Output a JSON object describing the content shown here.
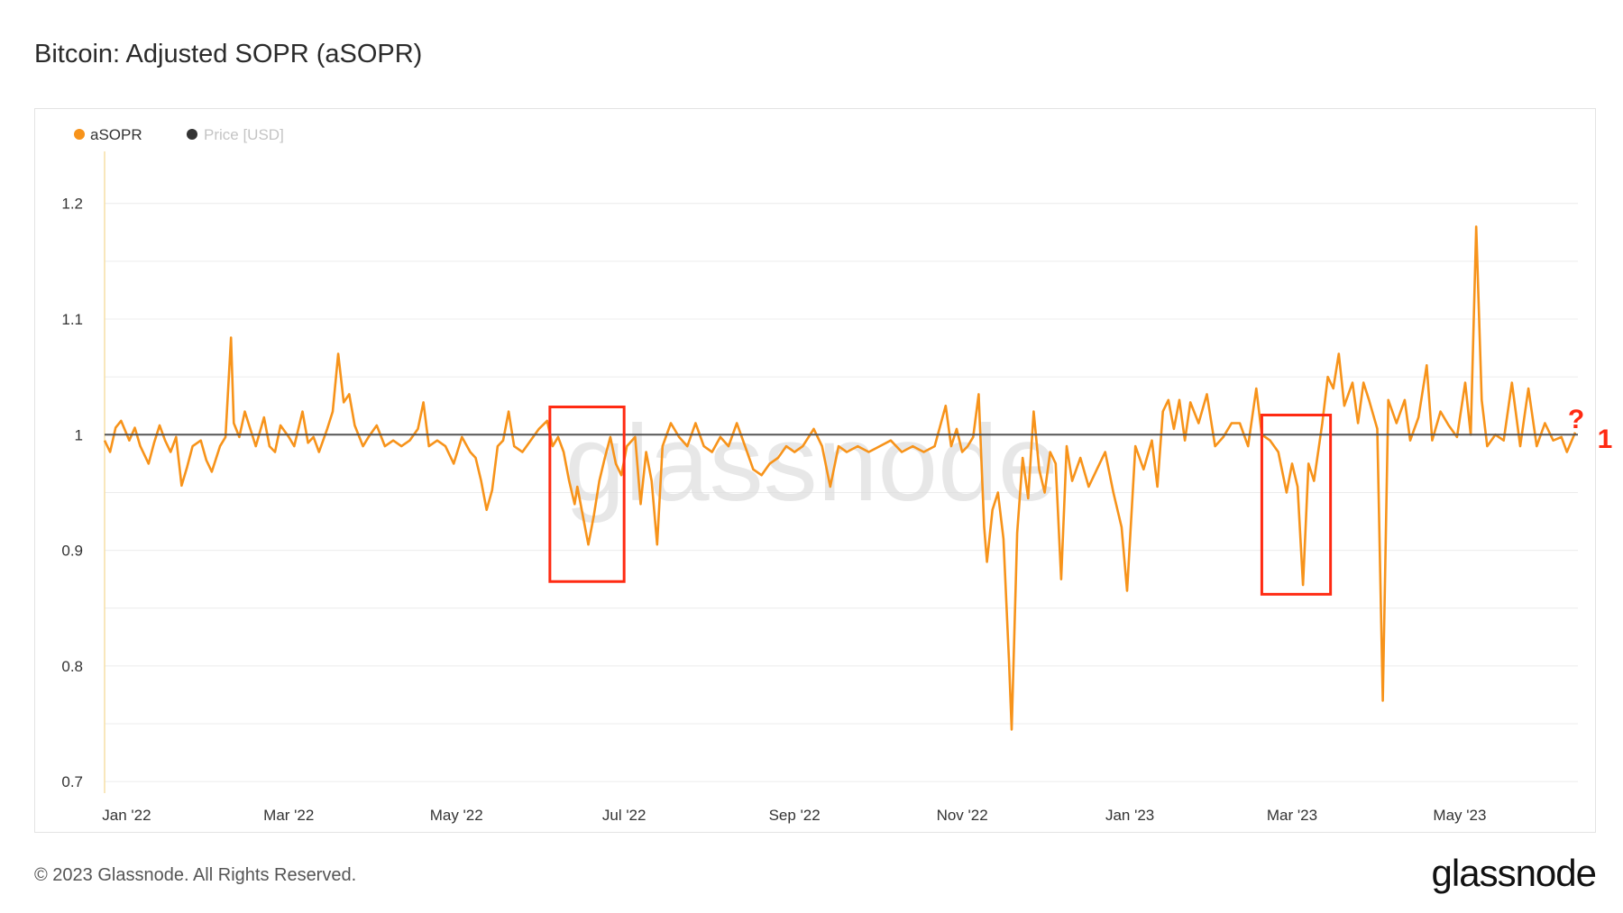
{
  "title": "Bitcoin: Adjusted SOPR (aSOPR)",
  "footer": {
    "copyright": "© 2023 Glassnode. All Rights Reserved.",
    "brand": "glassnode"
  },
  "watermark": "glassnode",
  "annotations": {
    "question_mark": "?",
    "one_label": "1"
  },
  "colors": {
    "asopr": "#f7931a",
    "price": "#333333",
    "boxes": "#ff2a12",
    "baseline": "#555555"
  },
  "chart_data": {
    "type": "line",
    "title": "Bitcoin: Adjusted SOPR (aSOPR)",
    "legend": [
      {
        "name": "aSOPR",
        "color": "#f7931a",
        "active": true
      },
      {
        "name": "Price [USD]",
        "color": "#333333",
        "active": false
      }
    ],
    "legend_position": "top-left",
    "grid": true,
    "ylim": [
      0.69,
      1.245
    ],
    "y_ticks": [
      0.7,
      0.8,
      0.9,
      1,
      1.1,
      1.2
    ],
    "y_tick_labels": [
      "0.7",
      "0.8",
      "0.9",
      "1",
      "1.1",
      "1.2"
    ],
    "xlim": [
      "2021-12-24",
      "2023-06-13"
    ],
    "x_ticks": [
      "2022-01-01",
      "2022-03-01",
      "2022-05-01",
      "2022-07-01",
      "2022-09-01",
      "2022-11-01",
      "2023-01-01",
      "2023-03-01",
      "2023-05-01"
    ],
    "x_tick_labels": [
      "Jan '22",
      "Mar '22",
      "May '22",
      "Jul '22",
      "Sep '22",
      "Nov '22",
      "Jan '23",
      "Mar '23",
      "May '23"
    ],
    "reference_line": 1.0,
    "series": [
      {
        "name": "aSOPR",
        "points": [
          [
            "2021-12-24",
            0.995
          ],
          [
            "2021-12-26",
            0.985
          ],
          [
            "2021-12-28",
            1.006
          ],
          [
            "2021-12-30",
            1.012
          ],
          [
            "2022-01-02",
            0.995
          ],
          [
            "2022-01-04",
            1.006
          ],
          [
            "2022-01-06",
            0.99
          ],
          [
            "2022-01-09",
            0.975
          ],
          [
            "2022-01-11",
            0.993
          ],
          [
            "2022-01-13",
            1.008
          ],
          [
            "2022-01-15",
            0.995
          ],
          [
            "2022-01-17",
            0.985
          ],
          [
            "2022-01-19",
            0.998
          ],
          [
            "2022-01-21",
            0.956
          ],
          [
            "2022-01-23",
            0.972
          ],
          [
            "2022-01-25",
            0.99
          ],
          [
            "2022-01-28",
            0.995
          ],
          [
            "2022-01-30",
            0.978
          ],
          [
            "2022-02-01",
            0.968
          ],
          [
            "2022-02-04",
            0.99
          ],
          [
            "2022-02-06",
            0.998
          ],
          [
            "2022-02-08",
            1.084
          ],
          [
            "2022-02-09",
            1.01
          ],
          [
            "2022-02-11",
            0.998
          ],
          [
            "2022-02-13",
            1.02
          ],
          [
            "2022-02-15",
            1.005
          ],
          [
            "2022-02-17",
            0.99
          ],
          [
            "2022-02-20",
            1.015
          ],
          [
            "2022-02-22",
            0.99
          ],
          [
            "2022-02-24",
            0.985
          ],
          [
            "2022-02-26",
            1.008
          ],
          [
            "2022-03-01",
            0.998
          ],
          [
            "2022-03-03",
            0.99
          ],
          [
            "2022-03-06",
            1.02
          ],
          [
            "2022-03-08",
            0.993
          ],
          [
            "2022-03-10",
            0.998
          ],
          [
            "2022-03-12",
            0.985
          ],
          [
            "2022-03-15",
            1.005
          ],
          [
            "2022-03-17",
            1.02
          ],
          [
            "2022-03-19",
            1.07
          ],
          [
            "2022-03-21",
            1.028
          ],
          [
            "2022-03-23",
            1.035
          ],
          [
            "2022-03-25",
            1.008
          ],
          [
            "2022-03-28",
            0.99
          ],
          [
            "2022-03-30",
            0.998
          ],
          [
            "2022-04-02",
            1.008
          ],
          [
            "2022-04-05",
            0.99
          ],
          [
            "2022-04-08",
            0.995
          ],
          [
            "2022-04-11",
            0.99
          ],
          [
            "2022-04-14",
            0.995
          ],
          [
            "2022-04-17",
            1.005
          ],
          [
            "2022-04-19",
            1.028
          ],
          [
            "2022-04-21",
            0.99
          ],
          [
            "2022-04-24",
            0.995
          ],
          [
            "2022-04-27",
            0.99
          ],
          [
            "2022-04-30",
            0.975
          ],
          [
            "2022-05-03",
            0.998
          ],
          [
            "2022-05-06",
            0.985
          ],
          [
            "2022-05-08",
            0.98
          ],
          [
            "2022-05-10",
            0.96
          ],
          [
            "2022-05-12",
            0.935
          ],
          [
            "2022-05-14",
            0.952
          ],
          [
            "2022-05-16",
            0.99
          ],
          [
            "2022-05-18",
            0.995
          ],
          [
            "2022-05-20",
            1.02
          ],
          [
            "2022-05-22",
            0.99
          ],
          [
            "2022-05-25",
            0.985
          ],
          [
            "2022-05-28",
            0.995
          ],
          [
            "2022-05-31",
            1.005
          ],
          [
            "2022-06-03",
            1.012
          ],
          [
            "2022-06-05",
            0.99
          ],
          [
            "2022-06-07",
            0.998
          ],
          [
            "2022-06-09",
            0.985
          ],
          [
            "2022-06-11",
            0.96
          ],
          [
            "2022-06-13",
            0.94
          ],
          [
            "2022-06-14",
            0.955
          ],
          [
            "2022-06-16",
            0.93
          ],
          [
            "2022-06-18",
            0.905
          ],
          [
            "2022-06-20",
            0.93
          ],
          [
            "2022-06-22",
            0.96
          ],
          [
            "2022-06-24",
            0.98
          ],
          [
            "2022-06-26",
            0.998
          ],
          [
            "2022-06-28",
            0.975
          ],
          [
            "2022-06-30",
            0.965
          ],
          [
            "2022-07-02",
            0.99
          ],
          [
            "2022-07-05",
            0.998
          ],
          [
            "2022-07-07",
            0.94
          ],
          [
            "2022-07-09",
            0.985
          ],
          [
            "2022-07-11",
            0.96
          ],
          [
            "2022-07-13",
            0.905
          ],
          [
            "2022-07-15",
            0.99
          ],
          [
            "2022-07-18",
            1.01
          ],
          [
            "2022-07-21",
            0.998
          ],
          [
            "2022-07-24",
            0.99
          ],
          [
            "2022-07-27",
            1.01
          ],
          [
            "2022-07-30",
            0.99
          ],
          [
            "2022-08-02",
            0.985
          ],
          [
            "2022-08-05",
            0.998
          ],
          [
            "2022-08-08",
            0.99
          ],
          [
            "2022-08-11",
            1.01
          ],
          [
            "2022-08-14",
            0.99
          ],
          [
            "2022-08-17",
            0.97
          ],
          [
            "2022-08-20",
            0.965
          ],
          [
            "2022-08-23",
            0.975
          ],
          [
            "2022-08-26",
            0.98
          ],
          [
            "2022-08-29",
            0.99
          ],
          [
            "2022-09-01",
            0.985
          ],
          [
            "2022-09-04",
            0.99
          ],
          [
            "2022-09-08",
            1.005
          ],
          [
            "2022-09-11",
            0.99
          ],
          [
            "2022-09-14",
            0.955
          ],
          [
            "2022-09-17",
            0.99
          ],
          [
            "2022-09-20",
            0.985
          ],
          [
            "2022-09-24",
            0.99
          ],
          [
            "2022-09-28",
            0.985
          ],
          [
            "2022-10-02",
            0.99
          ],
          [
            "2022-10-06",
            0.995
          ],
          [
            "2022-10-10",
            0.985
          ],
          [
            "2022-10-14",
            0.99
          ],
          [
            "2022-10-18",
            0.985
          ],
          [
            "2022-10-22",
            0.99
          ],
          [
            "2022-10-26",
            1.025
          ],
          [
            "2022-10-28",
            0.99
          ],
          [
            "2022-10-30",
            1.005
          ],
          [
            "2022-11-01",
            0.985
          ],
          [
            "2022-11-03",
            0.99
          ],
          [
            "2022-11-05",
            0.998
          ],
          [
            "2022-11-07",
            1.035
          ],
          [
            "2022-11-09",
            0.92
          ],
          [
            "2022-11-10",
            0.89
          ],
          [
            "2022-11-12",
            0.935
          ],
          [
            "2022-11-14",
            0.95
          ],
          [
            "2022-11-16",
            0.91
          ],
          [
            "2022-11-18",
            0.805
          ],
          [
            "2022-11-19",
            0.745
          ],
          [
            "2022-11-21",
            0.915
          ],
          [
            "2022-11-23",
            0.98
          ],
          [
            "2022-11-25",
            0.945
          ],
          [
            "2022-11-27",
            1.02
          ],
          [
            "2022-11-29",
            0.97
          ],
          [
            "2022-12-01",
            0.95
          ],
          [
            "2022-12-03",
            0.985
          ],
          [
            "2022-12-05",
            0.975
          ],
          [
            "2022-12-07",
            0.875
          ],
          [
            "2022-12-09",
            0.99
          ],
          [
            "2022-12-11",
            0.96
          ],
          [
            "2022-12-14",
            0.98
          ],
          [
            "2022-12-17",
            0.955
          ],
          [
            "2022-12-20",
            0.97
          ],
          [
            "2022-12-23",
            0.985
          ],
          [
            "2022-12-26",
            0.95
          ],
          [
            "2022-12-29",
            0.92
          ],
          [
            "2022-12-31",
            0.865
          ],
          [
            "2023-01-03",
            0.99
          ],
          [
            "2023-01-06",
            0.97
          ],
          [
            "2023-01-09",
            0.995
          ],
          [
            "2023-01-11",
            0.955
          ],
          [
            "2023-01-13",
            1.02
          ],
          [
            "2023-01-15",
            1.03
          ],
          [
            "2023-01-17",
            1.005
          ],
          [
            "2023-01-19",
            1.03
          ],
          [
            "2023-01-21",
            0.995
          ],
          [
            "2023-01-23",
            1.028
          ],
          [
            "2023-01-26",
            1.01
          ],
          [
            "2023-01-29",
            1.035
          ],
          [
            "2023-02-01",
            0.99
          ],
          [
            "2023-02-04",
            0.998
          ],
          [
            "2023-02-07",
            1.01
          ],
          [
            "2023-02-10",
            1.01
          ],
          [
            "2023-02-13",
            0.99
          ],
          [
            "2023-02-16",
            1.04
          ],
          [
            "2023-02-18",
            1.0
          ],
          [
            "2023-02-21",
            0.995
          ],
          [
            "2023-02-24",
            0.985
          ],
          [
            "2023-02-27",
            0.95
          ],
          [
            "2023-03-01",
            0.975
          ],
          [
            "2023-03-03",
            0.955
          ],
          [
            "2023-03-05",
            0.87
          ],
          [
            "2023-03-07",
            0.975
          ],
          [
            "2023-03-09",
            0.96
          ],
          [
            "2023-03-12",
            1.01
          ],
          [
            "2023-03-14",
            1.05
          ],
          [
            "2023-03-16",
            1.04
          ],
          [
            "2023-03-18",
            1.07
          ],
          [
            "2023-03-20",
            1.025
          ],
          [
            "2023-03-23",
            1.045
          ],
          [
            "2023-03-25",
            1.01
          ],
          [
            "2023-03-27",
            1.045
          ],
          [
            "2023-03-29",
            1.03
          ],
          [
            "2023-04-01",
            1.005
          ],
          [
            "2023-04-03",
            0.77
          ],
          [
            "2023-04-05",
            1.03
          ],
          [
            "2023-04-08",
            1.01
          ],
          [
            "2023-04-11",
            1.03
          ],
          [
            "2023-04-13",
            0.995
          ],
          [
            "2023-04-16",
            1.015
          ],
          [
            "2023-04-19",
            1.06
          ],
          [
            "2023-04-21",
            0.995
          ],
          [
            "2023-04-24",
            1.02
          ],
          [
            "2023-04-27",
            1.008
          ],
          [
            "2023-04-30",
            0.998
          ],
          [
            "2023-05-03",
            1.045
          ],
          [
            "2023-05-05",
            1.0
          ],
          [
            "2023-05-07",
            1.18
          ],
          [
            "2023-05-09",
            1.03
          ],
          [
            "2023-05-11",
            0.99
          ],
          [
            "2023-05-14",
            1.0
          ],
          [
            "2023-05-17",
            0.995
          ],
          [
            "2023-05-20",
            1.045
          ],
          [
            "2023-05-23",
            0.99
          ],
          [
            "2023-05-26",
            1.04
          ],
          [
            "2023-05-29",
            0.99
          ],
          [
            "2023-06-01",
            1.01
          ],
          [
            "2023-06-04",
            0.995
          ],
          [
            "2023-06-07",
            0.998
          ],
          [
            "2023-06-09",
            0.985
          ],
          [
            "2023-06-12",
            1.002
          ]
        ]
      }
    ],
    "highlight_boxes": [
      {
        "x": [
          "2022-06-04",
          "2022-07-01"
        ],
        "y": [
          0.873,
          1.024
        ]
      },
      {
        "x": [
          "2023-02-18",
          "2023-03-15"
        ],
        "y": [
          0.862,
          1.017
        ]
      }
    ]
  }
}
